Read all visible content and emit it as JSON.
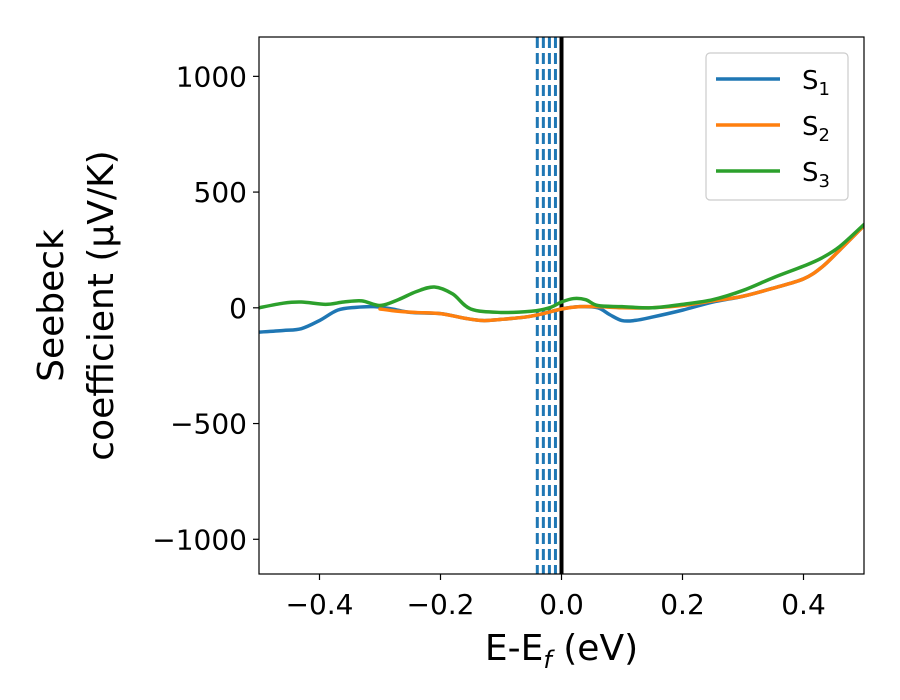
{
  "chart_data": {
    "type": "line",
    "title": "",
    "xlabel": "E-E",
    "xlabel_subscript": "f",
    "xlabel_unit": " (eV)",
    "ylabel_line1": "Seebeck",
    "ylabel_line2": "coefficient  (μV/K)",
    "xlim": [
      -0.5,
      0.5
    ],
    "ylim": [
      -1150,
      1170
    ],
    "xticks": [
      -0.4,
      -0.2,
      0.0,
      0.2,
      0.4
    ],
    "xtick_labels": [
      "−0.4",
      "−0.2",
      "0.0",
      "0.2",
      "0.4"
    ],
    "yticks": [
      -1000,
      -500,
      0,
      500,
      1000
    ],
    "ytick_labels": [
      "−1000",
      "−500",
      "0",
      "500",
      "1000"
    ],
    "grid": false,
    "legend_position": "top-right",
    "series": [
      {
        "name": "S",
        "subscript": "1",
        "color": "#1f77b4",
        "x": [
          -0.5,
          -0.46,
          -0.43,
          -0.4,
          -0.37,
          -0.34,
          -0.31,
          -0.28,
          -0.25,
          -0.2,
          -0.16,
          -0.13,
          -0.1,
          -0.06,
          -0.03,
          0.0,
          0.03,
          0.06,
          0.08,
          0.1,
          0.12,
          0.15,
          0.2,
          0.25,
          0.3,
          0.35,
          0.4,
          0.43,
          0.46,
          0.5
        ],
        "y": [
          -105,
          -98,
          -90,
          -55,
          -10,
          2,
          5,
          -5,
          -20,
          -25,
          -45,
          -55,
          -50,
          -40,
          -25,
          -5,
          5,
          0,
          -30,
          -55,
          -55,
          -40,
          -10,
          25,
          50,
          85,
          125,
          175,
          250,
          355
        ]
      },
      {
        "name": "S",
        "subscript": "2",
        "color": "#ff7f0e",
        "x": [
          -0.3,
          -0.27,
          -0.24,
          -0.2,
          -0.16,
          -0.13,
          -0.1,
          -0.06,
          -0.03,
          0.0,
          0.03,
          0.06,
          0.1,
          0.15,
          0.2,
          0.25,
          0.3,
          0.35,
          0.4,
          0.43,
          0.46,
          0.5
        ],
        "y": [
          -5,
          -15,
          -20,
          -25,
          -45,
          -55,
          -50,
          -40,
          -25,
          -5,
          5,
          5,
          0,
          0,
          10,
          30,
          50,
          85,
          125,
          175,
          250,
          355
        ]
      },
      {
        "name": "S",
        "subscript": "3",
        "color": "#2ca02c",
        "x": [
          -0.5,
          -0.46,
          -0.43,
          -0.39,
          -0.36,
          -0.33,
          -0.3,
          -0.27,
          -0.24,
          -0.21,
          -0.18,
          -0.15,
          -0.1,
          -0.05,
          -0.02,
          0.0,
          0.02,
          0.04,
          0.06,
          0.1,
          0.15,
          0.2,
          0.25,
          0.3,
          0.35,
          0.4,
          0.43,
          0.46,
          0.5
        ],
        "y": [
          0,
          20,
          25,
          15,
          25,
          30,
          10,
          35,
          70,
          90,
          60,
          -5,
          -20,
          -15,
          0,
          25,
          40,
          35,
          10,
          5,
          0,
          15,
          35,
          75,
          130,
          180,
          215,
          265,
          360
        ]
      }
    ],
    "vertical_lines": [
      {
        "x": -0.04,
        "color": "#1f77b4",
        "style": "dashed"
      },
      {
        "x": -0.03,
        "color": "#1f77b4",
        "style": "dashed"
      },
      {
        "x": -0.02,
        "color": "#1f77b4",
        "style": "dashed"
      },
      {
        "x": -0.01,
        "color": "#1f77b4",
        "style": "dashed"
      },
      {
        "x": 0.0,
        "color": "#000000",
        "style": "solid"
      }
    ]
  }
}
